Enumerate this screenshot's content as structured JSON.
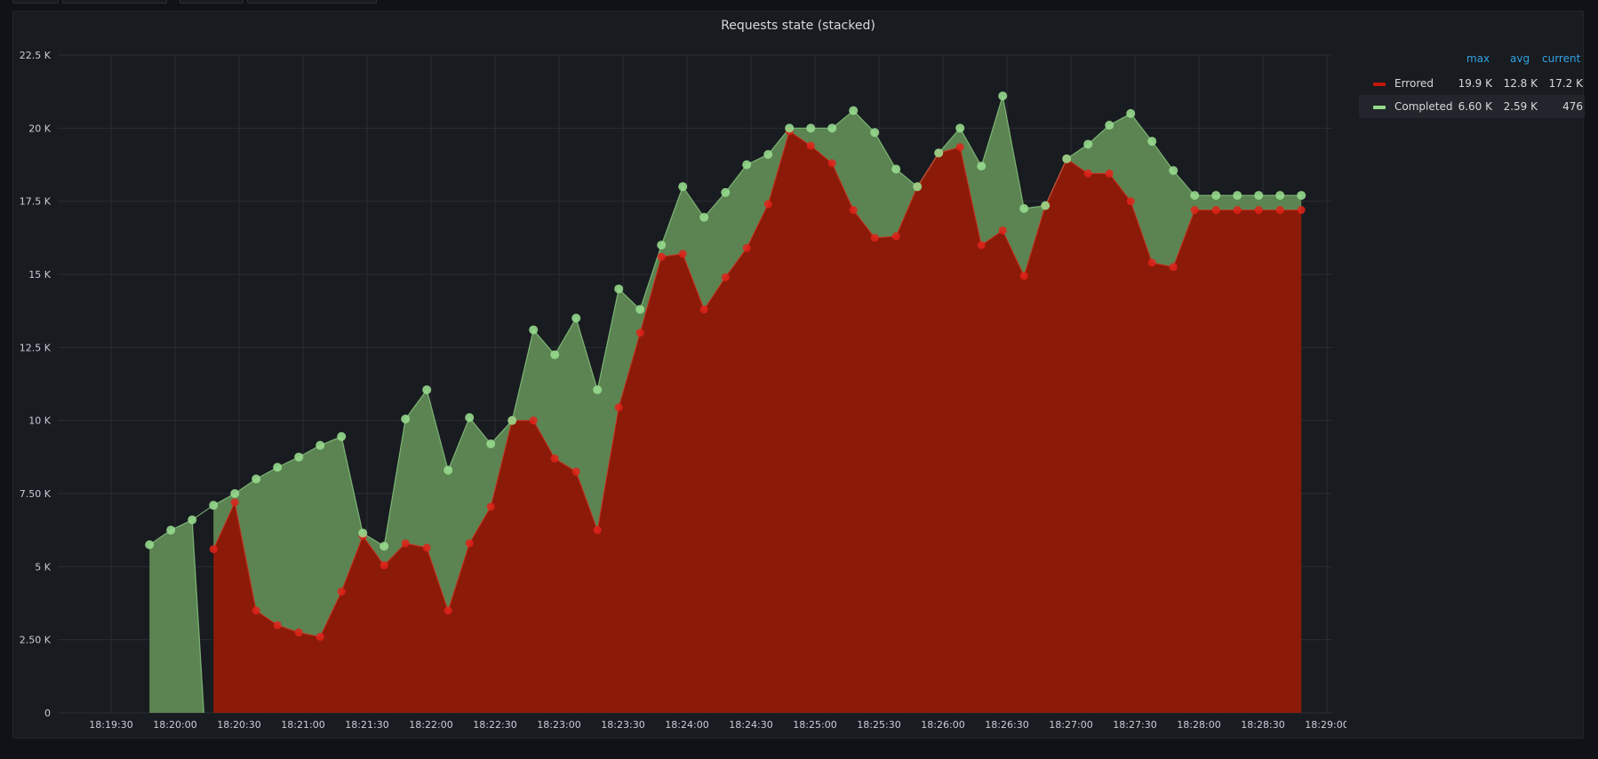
{
  "toolbar": {
    "buttons": [
      "",
      "",
      "",
      ""
    ]
  },
  "panel": {
    "title": "Requests state (stacked)"
  },
  "legend": {
    "headers": {
      "max": "max",
      "avg": "avg",
      "current": "current"
    },
    "rows": [
      {
        "name": "Errored",
        "color": "#c4160a",
        "max": "19.9 K",
        "avg": "12.8 K",
        "current": "17.2 K"
      },
      {
        "name": "Completed",
        "color": "#96d98d",
        "max": "6.60 K",
        "avg": "2.59 K",
        "current": "476"
      }
    ]
  },
  "chart_data": {
    "type": "area",
    "stacked": true,
    "title": "Requests state (stacked)",
    "y_ticks": [
      "0",
      "2.50 K",
      "5 K",
      "7.50 K",
      "10 K",
      "12.5 K",
      "15 K",
      "17.5 K",
      "20 K",
      "22.5 K"
    ],
    "x_ticks": [
      "18:19:30",
      "18:20:00",
      "18:20:30",
      "18:21:00",
      "18:21:30",
      "18:22:00",
      "18:22:30",
      "18:23:00",
      "18:23:30",
      "18:24:00",
      "18:24:30",
      "18:25:00",
      "18:25:30",
      "18:26:00",
      "18:26:30",
      "18:27:00",
      "18:27:30",
      "18:28:00",
      "18:28:30",
      "18:29:00"
    ],
    "ylim": [
      0,
      22500
    ],
    "x_range_seconds_since_18_19_00": [
      12,
      602
    ],
    "grid": true,
    "legend_position": "right",
    "x_seconds": [
      0,
      10,
      20,
      30,
      40,
      50,
      60,
      70,
      80,
      90,
      100,
      110,
      120,
      130,
      140,
      150,
      160,
      170,
      180,
      190,
      200,
      210,
      220,
      230,
      240,
      250,
      260,
      270,
      280,
      290,
      300,
      310,
      320,
      330,
      340,
      350,
      360,
      370,
      380,
      390,
      400,
      410,
      420,
      430,
      440,
      450,
      460,
      470,
      480,
      490,
      500,
      510,
      520,
      530,
      540
    ],
    "series": [
      {
        "name": "Errored",
        "color": "#c4160a",
        "values": [
          null,
          null,
          null,
          5600,
          7200,
          3500,
          3000,
          2750,
          2600,
          4150,
          6050,
          5050,
          5800,
          5650,
          3500,
          5800,
          7050,
          10000,
          10000,
          8700,
          8250,
          6250,
          10450,
          13000,
          15600,
          15700,
          13800,
          14900,
          15900,
          17400,
          19900,
          19400,
          18800,
          17200,
          16250,
          16300,
          18000,
          19150,
          19350,
          16000,
          16500,
          14950,
          17350,
          18950,
          18450,
          18450,
          17500,
          15400,
          15250,
          17200,
          17200,
          17200,
          17200,
          17200,
          17200
        ]
      },
      {
        "name": "Completed",
        "color": "#96d98d",
        "values": [
          5750,
          6250,
          6600,
          1500,
          300,
          4500,
          5400,
          6350,
          6550,
          5300,
          100,
          650,
          4250,
          5400,
          4800,
          4300,
          2150,
          0,
          3100,
          3550,
          5250,
          4800,
          4050,
          800,
          400,
          2300,
          3150,
          2900,
          2850,
          1700,
          100,
          600,
          1200,
          3400,
          3600,
          2300,
          0,
          0,
          650,
          2700,
          4600,
          2300,
          0,
          0,
          1000,
          1650,
          3000,
          4150,
          3300,
          500,
          500,
          500,
          500,
          500,
          500
        ],
        "totals": [
          5750,
          6250,
          6600,
          7100,
          7500,
          8000,
          8400,
          8750,
          9150,
          9450,
          6150,
          5700,
          10050,
          11050,
          8300,
          10100,
          9200,
          10000,
          13100,
          12250,
          13500,
          11050,
          14500,
          13800,
          16000,
          18000,
          16950,
          17800,
          18750,
          19100,
          20000,
          20000,
          20000,
          20600,
          19850,
          18600,
          18000,
          19150,
          20000,
          18700,
          21100,
          17250,
          17350,
          18950,
          19450,
          20100,
          20500,
          19550,
          18550,
          17700,
          17700,
          17700,
          17700,
          17700,
          17700
        ]
      }
    ]
  }
}
